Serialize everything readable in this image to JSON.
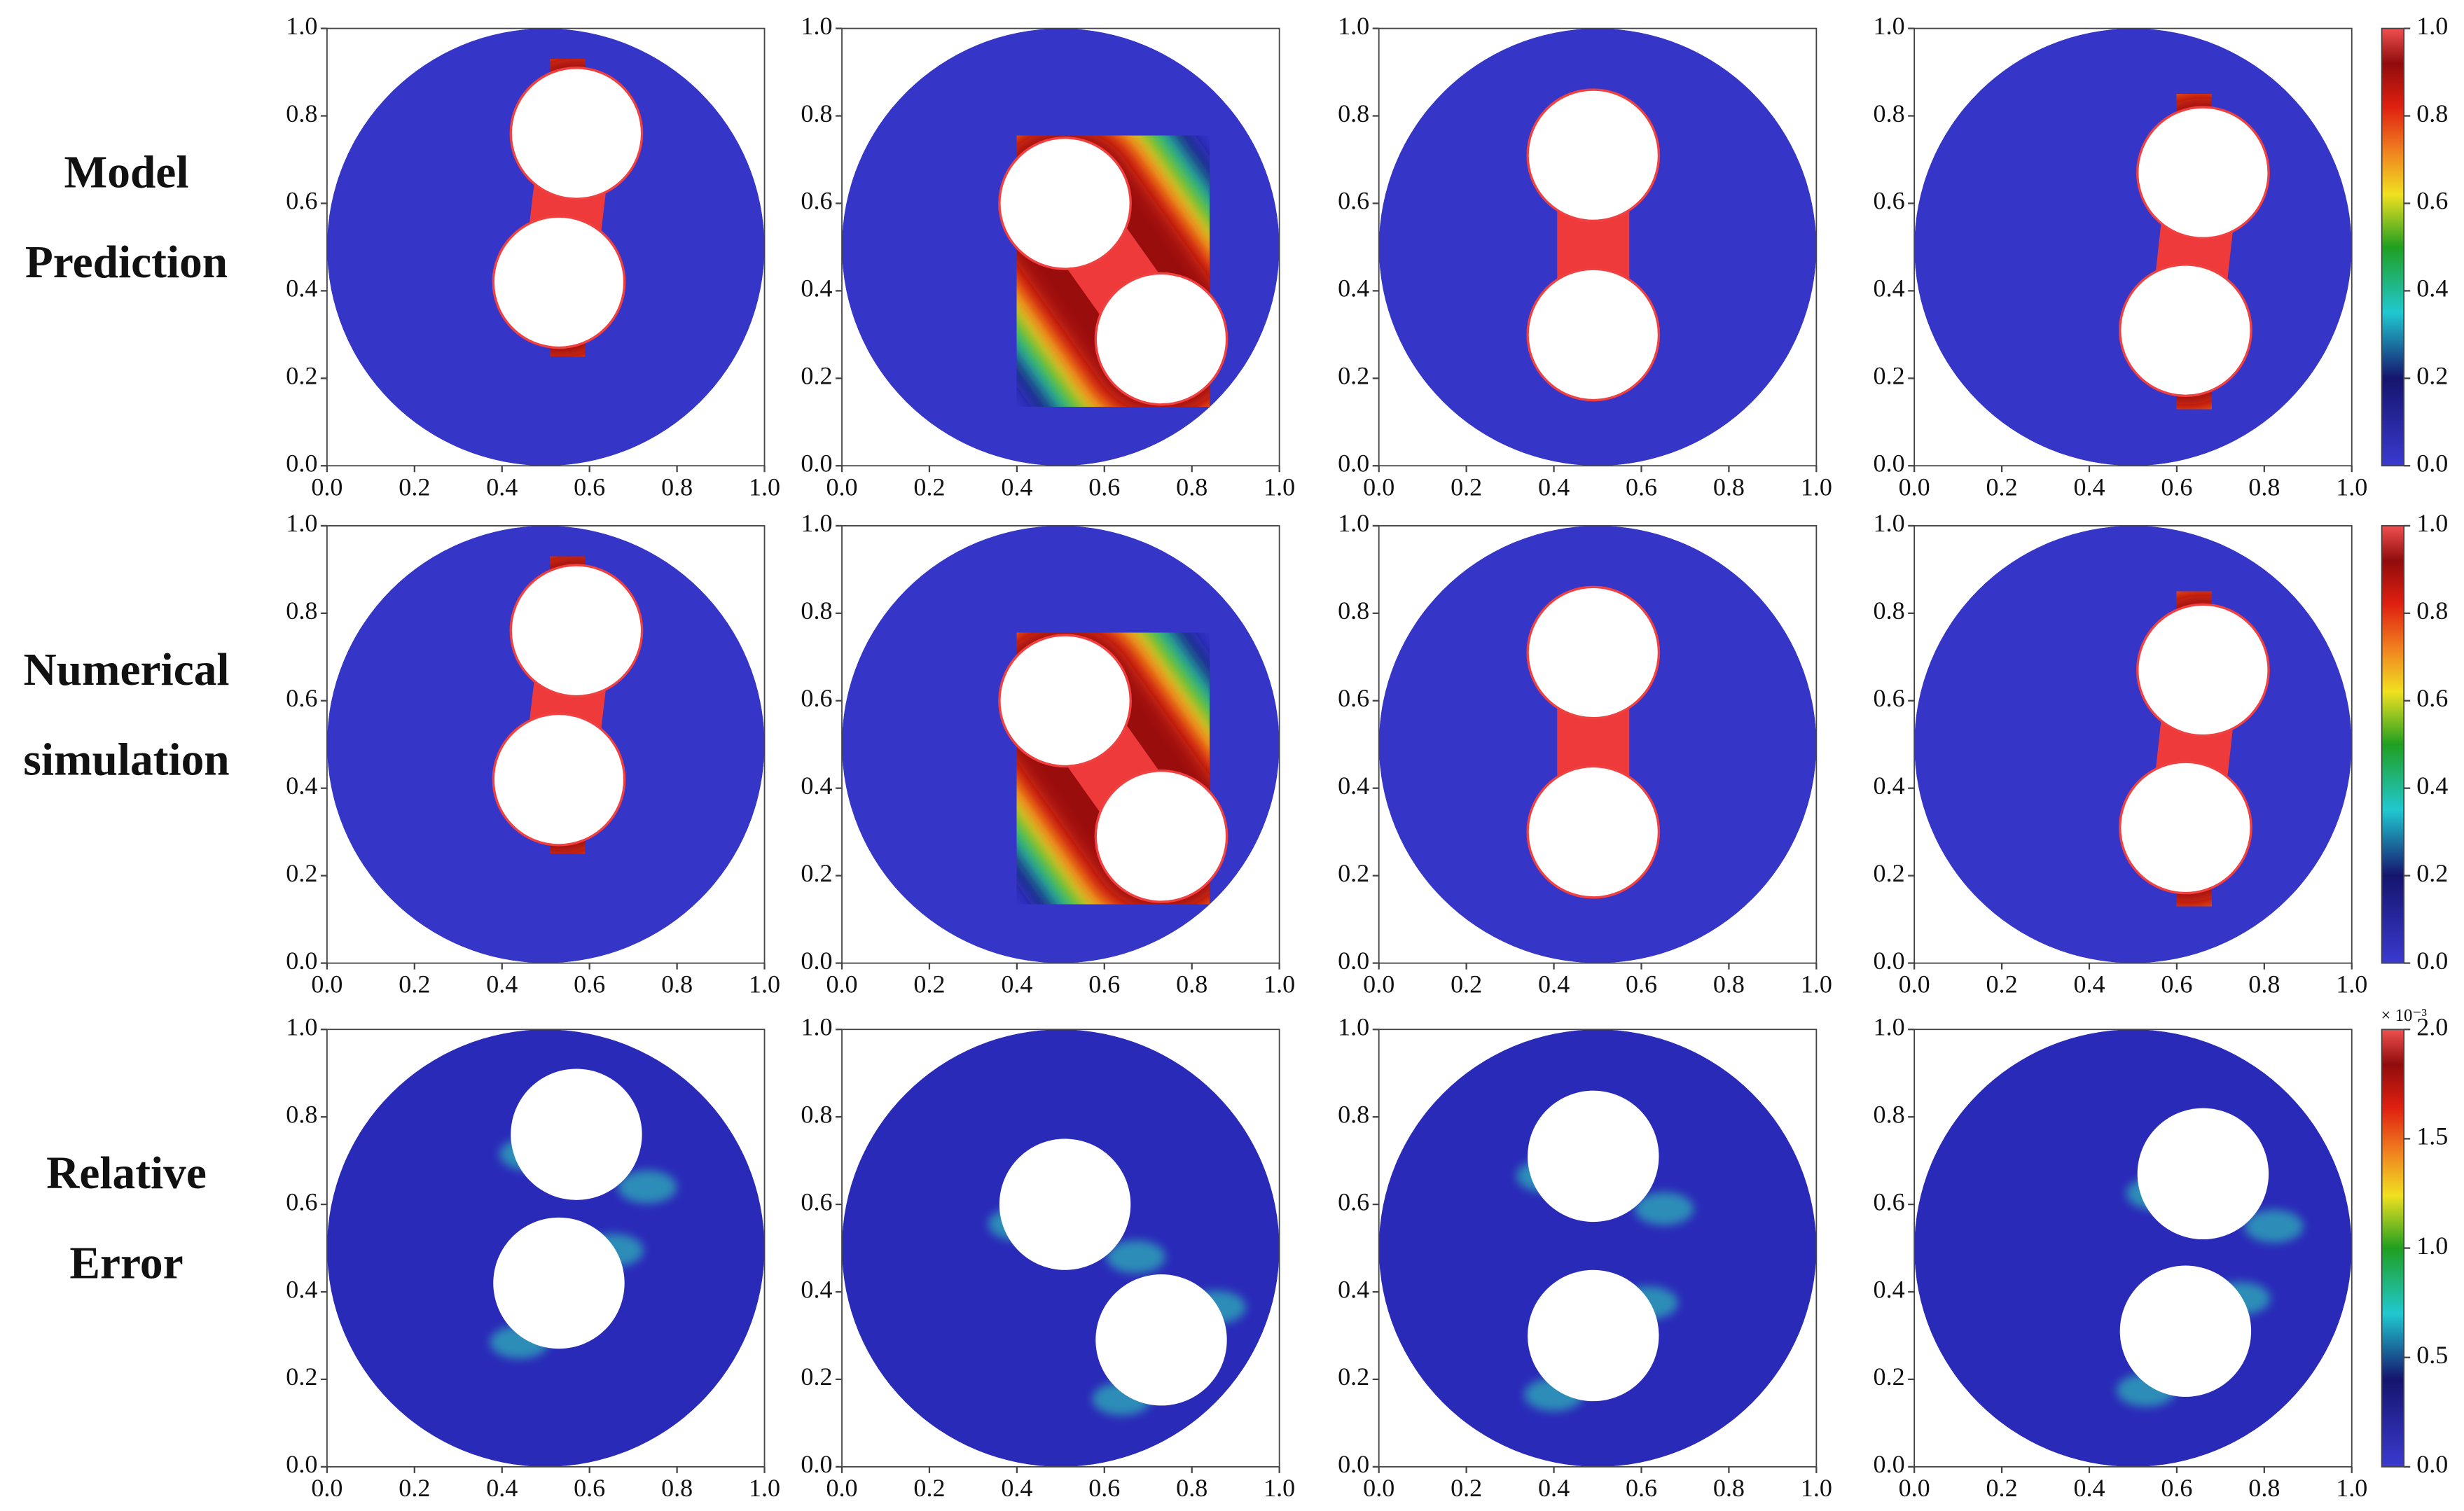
{
  "row_labels": [
    [
      "Model",
      "Prediction"
    ],
    [
      "Numerical",
      "simulation"
    ],
    [
      "Relative",
      "Error"
    ]
  ],
  "chart_data": [
    {
      "type": "heatmap",
      "xlim": [
        0,
        1
      ],
      "ylim": [
        0,
        1
      ],
      "xticks": [
        {
          "value": 0,
          "label": "0.0"
        },
        0.2,
        0.4,
        0.6,
        0.8,
        {
          "value": 1,
          "label": "1.0"
        }
      ],
      "yticks": [
        {
          "value": 0,
          "label": "0.0"
        },
        0.2,
        0.4,
        0.6,
        0.8,
        {
          "value": 1,
          "label": "1.0"
        }
      ],
      "holes": [
        {
          "x": 0.57,
          "y": 0.76,
          "r": 0.15
        },
        {
          "x": 0.53,
          "y": 0.42,
          "r": 0.15
        }
      ]
    },
    {
      "type": "heatmap",
      "xlim": [
        0,
        1
      ],
      "ylim": [
        0,
        1
      ],
      "xticks": [
        {
          "value": 0,
          "label": "0.0"
        },
        0.2,
        0.4,
        0.6,
        0.8,
        {
          "value": 1,
          "label": "1.0"
        }
      ],
      "yticks": [
        {
          "value": 0,
          "label": "0.0"
        },
        0.2,
        0.4,
        0.6,
        0.8,
        {
          "value": 1,
          "label": "1.0"
        }
      ],
      "holes": [
        {
          "x": 0.51,
          "y": 0.6,
          "r": 0.15
        },
        {
          "x": 0.73,
          "y": 0.29,
          "r": 0.15
        }
      ]
    },
    {
      "type": "heatmap",
      "xlim": [
        0,
        1
      ],
      "ylim": [
        0,
        1
      ],
      "xticks": [
        {
          "value": 0,
          "label": "0.0"
        },
        0.2,
        0.4,
        0.6,
        0.8,
        {
          "value": 1,
          "label": "1.0"
        }
      ],
      "yticks": [
        {
          "value": 0,
          "label": "0.0"
        },
        0.2,
        0.4,
        0.6,
        0.8,
        {
          "value": 1,
          "label": "1.0"
        }
      ],
      "holes": [
        {
          "x": 0.49,
          "y": 0.71,
          "r": 0.15
        },
        {
          "x": 0.49,
          "y": 0.3,
          "r": 0.15
        }
      ]
    },
    {
      "type": "heatmap",
      "xlim": [
        0,
        1
      ],
      "ylim": [
        0,
        1
      ],
      "xticks": [
        {
          "value": 0,
          "label": "0.0"
        },
        0.2,
        0.4,
        0.6,
        0.8,
        {
          "value": 1,
          "label": "1.0"
        }
      ],
      "yticks": [
        {
          "value": 0,
          "label": "0.0"
        },
        0.2,
        0.4,
        0.6,
        0.8,
        {
          "value": 1,
          "label": "1.0"
        }
      ],
      "holes": [
        {
          "x": 0.66,
          "y": 0.67,
          "r": 0.15
        },
        {
          "x": 0.62,
          "y": 0.31,
          "r": 0.15
        }
      ],
      "colorbar": {
        "lim": [
          0,
          1
        ],
        "ticks": [
          {
            "value": 0,
            "label": "0.0"
          },
          0.2,
          0.4,
          0.6,
          0.8,
          {
            "value": 1,
            "label": "1.0"
          }
        ]
      }
    },
    {
      "type": "heatmap",
      "xlim": [
        0,
        1
      ],
      "ylim": [
        0,
        1
      ],
      "xticks": [
        {
          "value": 0,
          "label": "0.0"
        },
        0.2,
        0.4,
        0.6,
        0.8,
        {
          "value": 1,
          "label": "1.0"
        }
      ],
      "yticks": [
        {
          "value": 0,
          "label": "0.0"
        },
        0.2,
        0.4,
        0.6,
        0.8,
        {
          "value": 1,
          "label": "1.0"
        }
      ],
      "holes": [
        {
          "x": 0.57,
          "y": 0.76,
          "r": 0.15
        },
        {
          "x": 0.53,
          "y": 0.42,
          "r": 0.15
        }
      ]
    },
    {
      "type": "heatmap",
      "xlim": [
        0,
        1
      ],
      "ylim": [
        0,
        1
      ],
      "xticks": [
        {
          "value": 0,
          "label": "0.0"
        },
        0.2,
        0.4,
        0.6,
        0.8,
        {
          "value": 1,
          "label": "1.0"
        }
      ],
      "yticks": [
        {
          "value": 0,
          "label": "0.0"
        },
        0.2,
        0.4,
        0.6,
        0.8,
        {
          "value": 1,
          "label": "1.0"
        }
      ],
      "holes": [
        {
          "x": 0.51,
          "y": 0.6,
          "r": 0.15
        },
        {
          "x": 0.73,
          "y": 0.29,
          "r": 0.15
        }
      ]
    },
    {
      "type": "heatmap",
      "xlim": [
        0,
        1
      ],
      "ylim": [
        0,
        1
      ],
      "xticks": [
        {
          "value": 0,
          "label": "0.0"
        },
        0.2,
        0.4,
        0.6,
        0.8,
        {
          "value": 1,
          "label": "1.0"
        }
      ],
      "yticks": [
        {
          "value": 0,
          "label": "0.0"
        },
        0.2,
        0.4,
        0.6,
        0.8,
        {
          "value": 1,
          "label": "1.0"
        }
      ],
      "holes": [
        {
          "x": 0.49,
          "y": 0.71,
          "r": 0.15
        },
        {
          "x": 0.49,
          "y": 0.3,
          "r": 0.15
        }
      ]
    },
    {
      "type": "heatmap",
      "xlim": [
        0,
        1
      ],
      "ylim": [
        0,
        1
      ],
      "xticks": [
        {
          "value": 0,
          "label": "0.0"
        },
        0.2,
        0.4,
        0.6,
        0.8,
        {
          "value": 1,
          "label": "1.0"
        }
      ],
      "yticks": [
        {
          "value": 0,
          "label": "0.0"
        },
        0.2,
        0.4,
        0.6,
        0.8,
        {
          "value": 1,
          "label": "1.0"
        }
      ],
      "holes": [
        {
          "x": 0.66,
          "y": 0.67,
          "r": 0.15
        },
        {
          "x": 0.62,
          "y": 0.31,
          "r": 0.15
        }
      ],
      "colorbar": {
        "lim": [
          0,
          1
        ],
        "ticks": [
          {
            "value": 0,
            "label": "0.0"
          },
          0.2,
          0.4,
          0.6,
          0.8,
          {
            "value": 1,
            "label": "1.0"
          }
        ]
      }
    },
    {
      "type": "error-map",
      "xlim": [
        0,
        1
      ],
      "ylim": [
        0,
        1
      ],
      "xticks": [
        {
          "value": 0,
          "label": "0.0"
        },
        0.2,
        0.4,
        0.6,
        0.8,
        {
          "value": 1,
          "label": "1.0"
        }
      ],
      "yticks": [
        {
          "value": 0,
          "label": "0.0"
        },
        0.2,
        0.4,
        0.6,
        0.8,
        {
          "value": 1,
          "label": "1.0"
        }
      ],
      "holes": [
        {
          "x": 0.57,
          "y": 0.76,
          "r": 0.15
        },
        {
          "x": 0.53,
          "y": 0.42,
          "r": 0.15
        }
      ]
    },
    {
      "type": "error-map",
      "xlim": [
        0,
        1
      ],
      "ylim": [
        0,
        1
      ],
      "xticks": [
        {
          "value": 0,
          "label": "0.0"
        },
        0.2,
        0.4,
        0.6,
        0.8,
        {
          "value": 1,
          "label": "1.0"
        }
      ],
      "yticks": [
        {
          "value": 0,
          "label": "0.0"
        },
        0.2,
        0.4,
        0.6,
        0.8,
        {
          "value": 1,
          "label": "1.0"
        }
      ],
      "holes": [
        {
          "x": 0.51,
          "y": 0.6,
          "r": 0.15
        },
        {
          "x": 0.73,
          "y": 0.29,
          "r": 0.15
        }
      ]
    },
    {
      "type": "error-map",
      "xlim": [
        0,
        1
      ],
      "ylim": [
        0,
        1
      ],
      "xticks": [
        {
          "value": 0,
          "label": "0.0"
        },
        0.2,
        0.4,
        0.6,
        0.8,
        {
          "value": 1,
          "label": "1.0"
        }
      ],
      "yticks": [
        {
          "value": 0,
          "label": "0.0"
        },
        0.2,
        0.4,
        0.6,
        0.8,
        {
          "value": 1,
          "label": "1.0"
        }
      ],
      "holes": [
        {
          "x": 0.49,
          "y": 0.71,
          "r": 0.15
        },
        {
          "x": 0.49,
          "y": 0.3,
          "r": 0.15
        }
      ]
    },
    {
      "type": "error-map",
      "xlim": [
        0,
        1
      ],
      "ylim": [
        0,
        1
      ],
      "xticks": [
        {
          "value": 0,
          "label": "0.0"
        },
        0.2,
        0.4,
        0.6,
        0.8,
        {
          "value": 1,
          "label": "1.0"
        }
      ],
      "yticks": [
        {
          "value": 0,
          "label": "0.0"
        },
        0.2,
        0.4,
        0.6,
        0.8,
        {
          "value": 1,
          "label": "1.0"
        }
      ],
      "holes": [
        {
          "x": 0.66,
          "y": 0.67,
          "r": 0.15
        },
        {
          "x": 0.62,
          "y": 0.31,
          "r": 0.15
        }
      ],
      "colorbar": {
        "lim": [
          0,
          2
        ],
        "ticks": [
          {
            "value": 0,
            "label": "0.0"
          },
          0.5,
          {
            "value": 1,
            "label": "1.0"
          },
          1.5,
          {
            "value": 2,
            "label": "2.0"
          }
        ],
        "multiplier": "× 10⁻³"
      }
    }
  ]
}
